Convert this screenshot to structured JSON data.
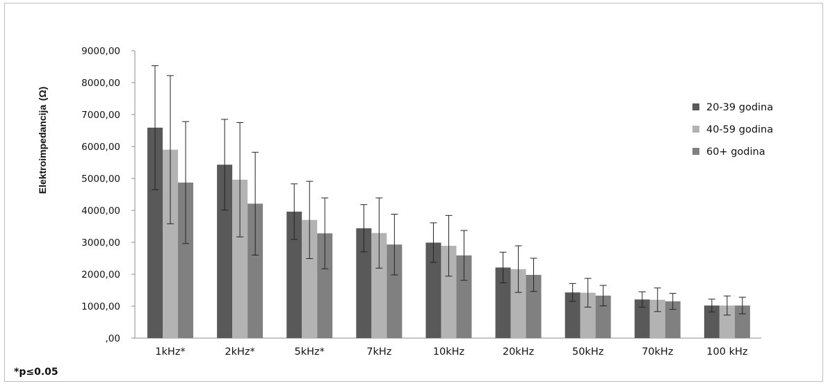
{
  "chart_data": {
    "type": "bar",
    "title": "",
    "xlabel": "",
    "ylabel": "Elektroimpedancija",
    "ylabel_unit": "(Ω)",
    "ylim": [
      0,
      9000
    ],
    "yticks": [
      {
        "value": 0,
        "label": ",00"
      },
      {
        "value": 1000,
        "label": "1000,00"
      },
      {
        "value": 2000,
        "label": "2000,00"
      },
      {
        "value": 3000,
        "label": "3000,00"
      },
      {
        "value": 4000,
        "label": "4000,00"
      },
      {
        "value": 5000,
        "label": "5000,00"
      },
      {
        "value": 6000,
        "label": "6000,00"
      },
      {
        "value": 7000,
        "label": "7000,00"
      },
      {
        "value": 8000,
        "label": "8000,00"
      },
      {
        "value": 9000,
        "label": "9000,00"
      }
    ],
    "categories": [
      "1kHz*",
      "2kHz*",
      "5kHz*",
      "7kHz",
      "10kHz",
      "20kHz",
      "50kHz",
      "70kHz",
      "100 kHz"
    ],
    "series": [
      {
        "name": "20-39 godina",
        "color": "#595959",
        "values": [
          6590,
          5430,
          3960,
          3440,
          2990,
          2210,
          1430,
          1210,
          1020
        ],
        "errors": [
          1940,
          1420,
          870,
          740,
          620,
          480,
          280,
          240,
          200
        ]
      },
      {
        "name": "40-59 godina",
        "color": "#b3b3b3",
        "values": [
          5900,
          4960,
          3700,
          3290,
          2890,
          2160,
          1420,
          1200,
          1020
        ],
        "errors": [
          2320,
          1790,
          1210,
          1100,
          950,
          730,
          450,
          370,
          300
        ]
      },
      {
        "name": "60+ godina",
        "color": "#808080",
        "values": [
          4870,
          4210,
          3280,
          2930,
          2590,
          1980,
          1330,
          1150,
          1020
        ],
        "errors": [
          1910,
          1610,
          1110,
          950,
          780,
          520,
          320,
          250,
          260
        ]
      }
    ],
    "legend_position": "top-right",
    "grid": false,
    "footnote": "*p≤0.05"
  }
}
